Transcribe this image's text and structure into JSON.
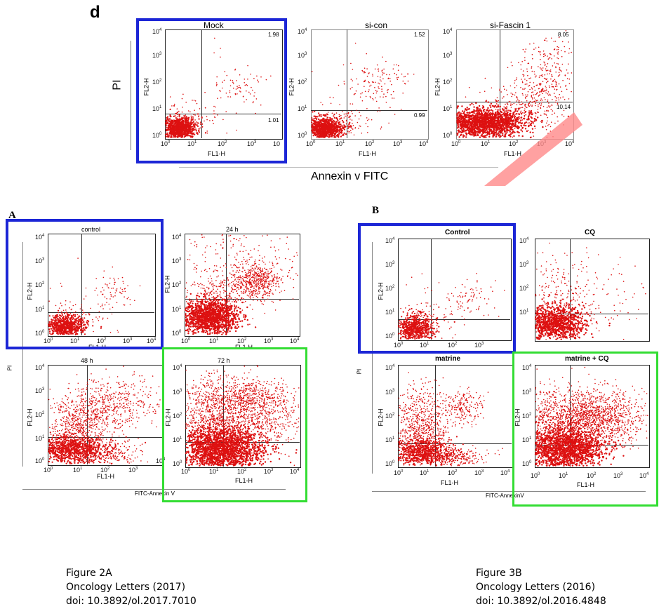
{
  "colors": {
    "dot": "#dd1111",
    "highlight_blue": "#1c26d6",
    "highlight_green": "#33dd33",
    "watermark": "#ff7777"
  },
  "figure_d": {
    "letter": "d",
    "x_axis_label": "Annexin v FITC",
    "y_axis_label": "PI",
    "plots": [
      {
        "title": "Mock",
        "q_ul": "",
        "q_ur": "1.98",
        "q_lr": "1.01",
        "xlabel": "FL1-H",
        "ylabel": "FL2-H"
      },
      {
        "title": "si-con",
        "q_ul": "",
        "q_ur": "1.52",
        "q_lr": "0.99",
        "xlabel": "FL1-H",
        "ylabel": "FL2-H"
      },
      {
        "title": "si-Fascin 1",
        "q_ul": "",
        "q_ur": "8.05",
        "q_lr": "10.14",
        "xlabel": "FL1-H",
        "ylabel": "FL2-H"
      }
    ]
  },
  "figure_2a": {
    "letter": "A",
    "x_axis_label": "FITC-Annexin V",
    "y_axis_label": "PI",
    "plots": [
      {
        "title": "control",
        "xlabel": "FL1-H",
        "ylabel": "FL2-H"
      },
      {
        "title": "24 h",
        "xlabel": "FL1-H",
        "ylabel": "FL2-H"
      },
      {
        "title": "48 h",
        "xlabel": "FL1-H",
        "ylabel": "FL2-H"
      },
      {
        "title": "72 h",
        "xlabel": "FL1-H",
        "ylabel": "FL2-H"
      }
    ]
  },
  "figure_3b": {
    "letter": "B",
    "x_axis_label": "FITC-AnnexinV",
    "y_axis_label": "PI",
    "plots": [
      {
        "title": "Control",
        "xlabel": "FL1-H",
        "ylabel": "FL2-H"
      },
      {
        "title": "CQ",
        "xlabel": "FL1-H",
        "ylabel": "FL2-H"
      },
      {
        "title": "matrine",
        "xlabel": "FL1-H",
        "ylabel": "FL2-H"
      },
      {
        "title": "matrine + CQ",
        "xlabel": "FL1-H",
        "ylabel": "FL2-H"
      }
    ]
  },
  "captions": {
    "left": {
      "line1": "Figure 2A",
      "line2": "Oncology Letters (2017)",
      "line3": "doi: 10.3892/ol.2017.7010"
    },
    "right": {
      "line1": "Figure 3B",
      "line2": "Oncology Letters (2016)",
      "line3": "doi: 10.3892/ol.2016.4848"
    }
  },
  "chart_data": [
    {
      "type": "scatter",
      "title": "Mock",
      "xlabel": "FL1-H",
      "ylabel": "FL2-H",
      "x_scale": "log",
      "y_scale": "log",
      "xlim": [
        1,
        10000
      ],
      "ylim": [
        1,
        10000
      ],
      "quadrant_values": {
        "upper_right": 1.98,
        "lower_right": 1.01
      }
    },
    {
      "type": "scatter",
      "title": "si-con",
      "xlabel": "FL1-H",
      "ylabel": "FL2-H",
      "x_scale": "log",
      "y_scale": "log",
      "xlim": [
        1,
        10000
      ],
      "ylim": [
        1,
        10000
      ],
      "quadrant_values": {
        "upper_right": 1.52,
        "lower_right": 0.99
      }
    },
    {
      "type": "scatter",
      "title": "si-Fascin 1",
      "xlabel": "FL1-H",
      "ylabel": "FL2-H",
      "x_scale": "log",
      "y_scale": "log",
      "xlim": [
        1,
        10000
      ],
      "ylim": [
        1,
        10000
      ],
      "quadrant_values": {
        "upper_right": 8.05,
        "lower_right": 10.14
      }
    },
    {
      "type": "scatter",
      "title": "control",
      "xlabel": "FL1-H",
      "ylabel": "FL2-H",
      "x_scale": "log",
      "y_scale": "log",
      "xlim": [
        1,
        10000
      ],
      "ylim": [
        1,
        10000
      ]
    },
    {
      "type": "scatter",
      "title": "24 h",
      "xlabel": "FL1-H",
      "ylabel": "FL2-H",
      "x_scale": "log",
      "y_scale": "log",
      "xlim": [
        1,
        10000
      ],
      "ylim": [
        1,
        10000
      ]
    },
    {
      "type": "scatter",
      "title": "48 h",
      "xlabel": "FL1-H",
      "ylabel": "FL2-H",
      "x_scale": "log",
      "y_scale": "log",
      "xlim": [
        1,
        10000
      ],
      "ylim": [
        1,
        10000
      ]
    },
    {
      "type": "scatter",
      "title": "72 h",
      "xlabel": "FL1-H",
      "ylabel": "FL2-H",
      "x_scale": "log",
      "y_scale": "log",
      "xlim": [
        1,
        10000
      ],
      "ylim": [
        1,
        10000
      ]
    },
    {
      "type": "scatter",
      "title": "Control",
      "xlabel": "FL1-H",
      "ylabel": "FL2-H",
      "x_scale": "log",
      "y_scale": "log",
      "xlim": [
        1,
        10000
      ],
      "ylim": [
        1,
        10000
      ]
    },
    {
      "type": "scatter",
      "title": "CQ",
      "xlabel": "FL1-H",
      "ylabel": "FL2-H",
      "x_scale": "log",
      "y_scale": "log",
      "xlim": [
        1,
        10000
      ],
      "ylim": [
        1,
        10000
      ]
    },
    {
      "type": "scatter",
      "title": "matrine",
      "xlabel": "FL1-H",
      "ylabel": "FL2-H",
      "x_scale": "log",
      "y_scale": "log",
      "xlim": [
        1,
        10000
      ],
      "ylim": [
        1,
        10000
      ]
    },
    {
      "type": "scatter",
      "title": "matrine + CQ",
      "xlabel": "FL1-H",
      "ylabel": "FL2-H",
      "x_scale": "log",
      "y_scale": "log",
      "xlim": [
        1,
        10000
      ],
      "ylim": [
        1,
        10000
      ]
    }
  ]
}
